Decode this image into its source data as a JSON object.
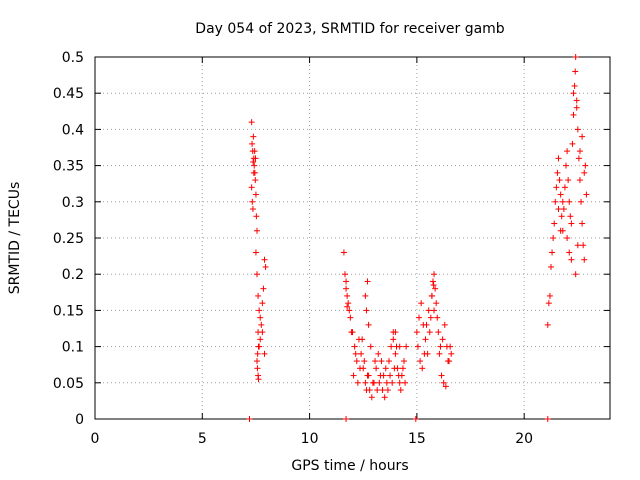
{
  "chart_data": {
    "type": "scatter",
    "title": "Day 054 of 2023, SRMTID for receiver gamb",
    "xlabel": "GPS time / hours",
    "ylabel": "SRMTID / TECUs",
    "xlim": [
      0,
      24
    ],
    "ylim": [
      0,
      0.5
    ],
    "xticks": [
      0,
      5,
      10,
      15,
      20
    ],
    "xtick_labels": [
      "0",
      "5",
      "10",
      "15",
      "20"
    ],
    "yticks": [
      0,
      0.05,
      0.1,
      0.15,
      0.2,
      0.25,
      0.3,
      0.35,
      0.4,
      0.45,
      0.5
    ],
    "ytick_labels": [
      "0",
      "0.05",
      "0.1",
      "0.15",
      "0.2",
      "0.25",
      "0.3",
      "0.35",
      "0.4",
      "0.45",
      "0.5"
    ],
    "grid": true,
    "marker": "+",
    "color": "#ff0000",
    "series": [
      {
        "name": "SRMTID",
        "points": [
          [
            7.2,
            0.0
          ],
          [
            11.7,
            0.0
          ],
          [
            14.95,
            0.0
          ],
          [
            21.1,
            0.0
          ],
          [
            7.3,
            0.41
          ],
          [
            7.32,
            0.38
          ],
          [
            7.35,
            0.37
          ],
          [
            7.38,
            0.39
          ],
          [
            7.4,
            0.36
          ],
          [
            7.42,
            0.35
          ],
          [
            7.45,
            0.34
          ],
          [
            7.3,
            0.32
          ],
          [
            7.33,
            0.3
          ],
          [
            7.36,
            0.29
          ],
          [
            7.47,
            0.33
          ],
          [
            7.5,
            0.31
          ],
          [
            7.52,
            0.28
          ],
          [
            7.55,
            0.26
          ],
          [
            7.44,
            0.37
          ],
          [
            7.48,
            0.36
          ],
          [
            7.4,
            0.34
          ],
          [
            7.37,
            0.355
          ],
          [
            7.5,
            0.23
          ],
          [
            7.55,
            0.2
          ],
          [
            7.6,
            0.17
          ],
          [
            7.65,
            0.15
          ],
          [
            7.7,
            0.14
          ],
          [
            7.75,
            0.13
          ],
          [
            7.8,
            0.16
          ],
          [
            7.85,
            0.18
          ],
          [
            7.9,
            0.22
          ],
          [
            7.95,
            0.21
          ],
          [
            7.6,
            0.12
          ],
          [
            7.62,
            0.1
          ],
          [
            7.58,
            0.09
          ],
          [
            7.55,
            0.08
          ],
          [
            7.57,
            0.07
          ],
          [
            7.6,
            0.06
          ],
          [
            7.62,
            0.055
          ],
          [
            7.65,
            0.1
          ],
          [
            7.7,
            0.11
          ],
          [
            7.8,
            0.12
          ],
          [
            7.9,
            0.09
          ],
          [
            11.6,
            0.23
          ],
          [
            11.65,
            0.2
          ],
          [
            11.7,
            0.19
          ],
          [
            11.75,
            0.17
          ],
          [
            11.8,
            0.16
          ],
          [
            11.85,
            0.15
          ],
          [
            11.9,
            0.14
          ],
          [
            11.95,
            0.12
          ],
          [
            11.7,
            0.18
          ],
          [
            11.75,
            0.155
          ],
          [
            12.0,
            0.12
          ],
          [
            12.1,
            0.1
          ],
          [
            12.2,
            0.08
          ],
          [
            12.3,
            0.11
          ],
          [
            12.4,
            0.09
          ],
          [
            12.5,
            0.07
          ],
          [
            12.6,
            0.05
          ],
          [
            12.7,
            0.06
          ],
          [
            12.8,
            0.04
          ],
          [
            12.9,
            0.03
          ],
          [
            13.0,
            0.05
          ],
          [
            13.1,
            0.07
          ],
          [
            13.2,
            0.09
          ],
          [
            13.3,
            0.06
          ],
          [
            13.4,
            0.04
          ],
          [
            13.5,
            0.03
          ],
          [
            13.6,
            0.05
          ],
          [
            13.7,
            0.08
          ],
          [
            13.8,
            0.1
          ],
          [
            13.9,
            0.12
          ],
          [
            14.0,
            0.09
          ],
          [
            14.1,
            0.07
          ],
          [
            14.2,
            0.05
          ],
          [
            14.3,
            0.06
          ],
          [
            14.4,
            0.08
          ],
          [
            14.5,
            0.1
          ],
          [
            12.05,
            0.06
          ],
          [
            12.15,
            0.09
          ],
          [
            12.25,
            0.05
          ],
          [
            12.35,
            0.07
          ],
          [
            12.45,
            0.11
          ],
          [
            12.55,
            0.08
          ],
          [
            12.65,
            0.04
          ],
          [
            12.75,
            0.06
          ],
          [
            12.85,
            0.1
          ],
          [
            12.95,
            0.05
          ],
          [
            13.05,
            0.08
          ],
          [
            13.15,
            0.04
          ],
          [
            13.25,
            0.05
          ],
          [
            13.35,
            0.08
          ],
          [
            13.45,
            0.06
          ],
          [
            13.55,
            0.07
          ],
          [
            13.65,
            0.04
          ],
          [
            13.75,
            0.06
          ],
          [
            13.85,
            0.05
          ],
          [
            13.95,
            0.07
          ],
          [
            14.05,
            0.1
          ],
          [
            14.15,
            0.06
          ],
          [
            14.25,
            0.04
          ],
          [
            14.35,
            0.07
          ],
          [
            14.45,
            0.05
          ],
          [
            12.6,
            0.17
          ],
          [
            12.65,
            0.15
          ],
          [
            12.7,
            0.19
          ],
          [
            12.75,
            0.13
          ],
          [
            13.9,
            0.11
          ],
          [
            14.0,
            0.12
          ],
          [
            14.2,
            0.1
          ],
          [
            15.0,
            0.12
          ],
          [
            15.1,
            0.14
          ],
          [
            15.2,
            0.16
          ],
          [
            15.3,
            0.13
          ],
          [
            15.4,
            0.11
          ],
          [
            15.5,
            0.09
          ],
          [
            15.6,
            0.12
          ],
          [
            15.7,
            0.17
          ],
          [
            15.75,
            0.19
          ],
          [
            15.8,
            0.2
          ],
          [
            15.85,
            0.18
          ],
          [
            15.9,
            0.16
          ],
          [
            15.95,
            0.14
          ],
          [
            16.0,
            0.12
          ],
          [
            16.1,
            0.1
          ],
          [
            16.2,
            0.11
          ],
          [
            16.3,
            0.13
          ],
          [
            16.4,
            0.1
          ],
          [
            16.5,
            0.08
          ],
          [
            16.6,
            0.09
          ],
          [
            15.05,
            0.1
          ],
          [
            15.15,
            0.08
          ],
          [
            15.25,
            0.07
          ],
          [
            15.35,
            0.09
          ],
          [
            15.45,
            0.13
          ],
          [
            15.55,
            0.15
          ],
          [
            15.65,
            0.14
          ],
          [
            15.8,
            0.15
          ],
          [
            16.05,
            0.09
          ],
          [
            16.15,
            0.06
          ],
          [
            16.25,
            0.05
          ],
          [
            16.35,
            0.045
          ],
          [
            16.45,
            0.08
          ],
          [
            16.55,
            0.1
          ],
          [
            15.7,
            0.17
          ],
          [
            15.78,
            0.185
          ],
          [
            21.1,
            0.13
          ],
          [
            21.15,
            0.16
          ],
          [
            21.2,
            0.17
          ],
          [
            21.25,
            0.21
          ],
          [
            21.3,
            0.23
          ],
          [
            21.35,
            0.25
          ],
          [
            21.4,
            0.27
          ],
          [
            21.45,
            0.3
          ],
          [
            21.5,
            0.32
          ],
          [
            21.55,
            0.34
          ],
          [
            21.6,
            0.36
          ],
          [
            21.65,
            0.33
          ],
          [
            21.7,
            0.31
          ],
          [
            21.75,
            0.28
          ],
          [
            21.8,
            0.26
          ],
          [
            21.85,
            0.29
          ],
          [
            21.9,
            0.32
          ],
          [
            21.95,
            0.35
          ],
          [
            22.0,
            0.37
          ],
          [
            22.05,
            0.33
          ],
          [
            22.1,
            0.3
          ],
          [
            22.15,
            0.28
          ],
          [
            22.2,
            0.27
          ],
          [
            22.25,
            0.38
          ],
          [
            22.3,
            0.42
          ],
          [
            22.35,
            0.46
          ],
          [
            22.4,
            0.5
          ],
          [
            22.45,
            0.44
          ],
          [
            22.5,
            0.4
          ],
          [
            22.55,
            0.36
          ],
          [
            22.6,
            0.33
          ],
          [
            22.65,
            0.3
          ],
          [
            22.7,
            0.27
          ],
          [
            22.75,
            0.24
          ],
          [
            22.8,
            0.22
          ],
          [
            22.85,
            0.35
          ],
          [
            22.9,
            0.31
          ],
          [
            21.6,
            0.29
          ],
          [
            21.7,
            0.26
          ],
          [
            21.8,
            0.3
          ],
          [
            22.0,
            0.25
          ],
          [
            22.1,
            0.23
          ],
          [
            22.2,
            0.22
          ],
          [
            22.4,
            0.2
          ],
          [
            22.5,
            0.24
          ],
          [
            22.6,
            0.37
          ],
          [
            22.3,
            0.45
          ],
          [
            22.38,
            0.48
          ],
          [
            22.45,
            0.43
          ],
          [
            22.7,
            0.39
          ],
          [
            22.8,
            0.34
          ]
        ]
      }
    ]
  }
}
